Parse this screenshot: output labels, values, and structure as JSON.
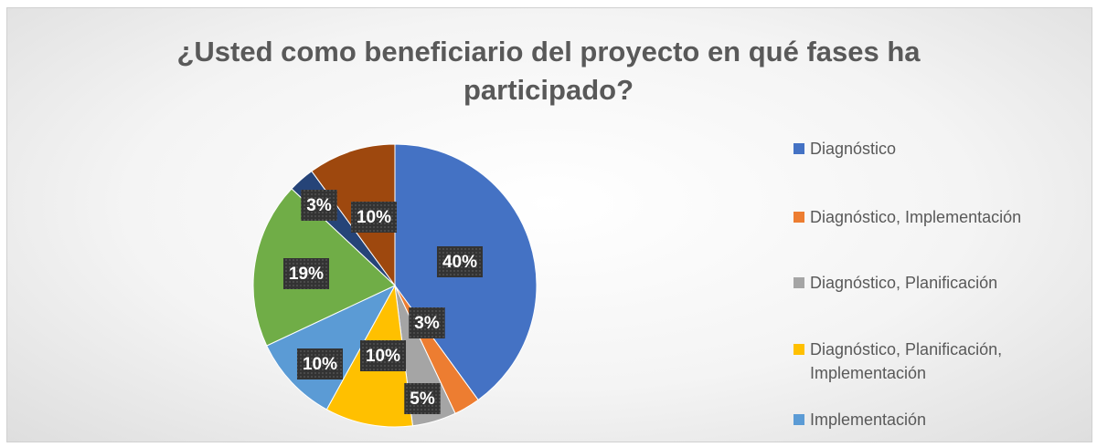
{
  "chart_data": {
    "type": "pie",
    "title": "¿Usted como beneficiario del proyecto en qué fases ha participado?",
    "categories": [
      "Diagnóstico",
      "Diagnóstico, Implementación",
      "Diagnóstico, Planificación",
      "Diagnóstico, Planificación, Implementación",
      "Implementación",
      null,
      null,
      null
    ],
    "values": [
      40,
      3,
      5,
      10,
      10,
      19,
      3,
      10
    ],
    "value_labels": [
      "40%",
      "3%",
      "5%",
      "10%",
      "10%",
      "19%",
      "3%",
      "10%"
    ],
    "colors": [
      "#4472c4",
      "#ed7d31",
      "#a5a5a5",
      "#ffc000",
      "#5b9bd5",
      "#70ad47",
      "#264478",
      "#9e480e"
    ],
    "legend": "right"
  }
}
